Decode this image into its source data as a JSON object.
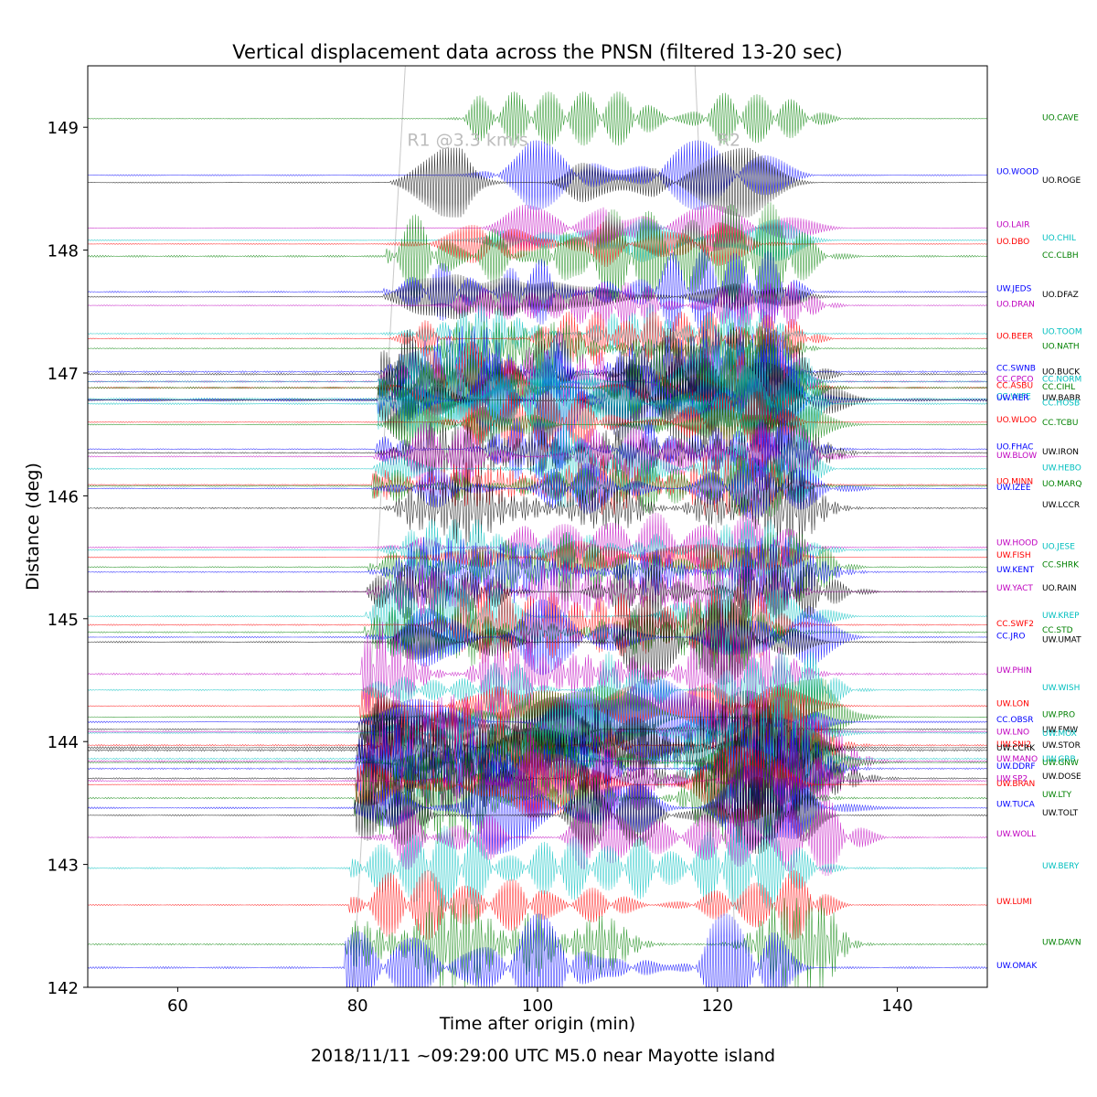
{
  "chart_data": {
    "type": "line",
    "title": "Vertical displacement data across the PNSN (filtered 13-20 sec)",
    "xlabel": "Time after origin (min)",
    "ylabel": "Distance (deg)",
    "footer": "2018/11/11 ~09:29:00 UTC  M5.0 near Mayotte island",
    "xlim": [
      50,
      150
    ],
    "ylim": [
      142,
      149.5
    ],
    "xticks": [
      60,
      80,
      100,
      120,
      140
    ],
    "yticks": [
      142,
      143,
      144,
      145,
      146,
      147,
      148,
      149
    ],
    "grid": false,
    "phase_lines": [
      {
        "label": "R1 @3.3 km/s",
        "x_at_top": 85.3,
        "x_at_bottom": 79.5,
        "label_x": 85.5,
        "label_y": 148.85
      },
      {
        "label": "R2",
        "x_at_top": 117.5,
        "x_at_bottom": 122.2,
        "label_x": 120.0,
        "label_y": 148.85
      }
    ],
    "colors": {
      "blue": "#0000ff",
      "green": "#008000",
      "red": "#ff0000",
      "cyan": "#00bfbf",
      "magenta": "#bf00bf",
      "black": "#000000",
      "phase": "#c8c8c8"
    },
    "series": [
      {
        "name": "UO.CAVE",
        "distance": 149.07,
        "color": "green",
        "column": "right",
        "amp": 0.35,
        "label_distance": 149.08
      },
      {
        "name": "UO.WOOD",
        "distance": 148.61,
        "color": "blue",
        "column": "left",
        "amp": 0.45,
        "label_distance": 148.64
      },
      {
        "name": "UO.ROGE",
        "distance": 148.55,
        "color": "black",
        "column": "right",
        "amp": 0.45,
        "label_distance": 148.57
      },
      {
        "name": "UO.LAIR",
        "distance": 148.18,
        "color": "magenta",
        "column": "left",
        "amp": 0.3,
        "label_distance": 148.21
      },
      {
        "name": "UO.CHIL",
        "distance": 148.08,
        "color": "cyan",
        "column": "right",
        "amp": 0.35,
        "label_distance": 148.1
      },
      {
        "name": "UO.DBO",
        "distance": 148.05,
        "color": "red",
        "column": "left",
        "amp": 0.35,
        "label_distance": 148.07
      },
      {
        "name": "CC.CLBH",
        "distance": 147.95,
        "color": "green",
        "column": "right",
        "amp": 0.7,
        "label_distance": 147.96
      },
      {
        "name": "UW.JEDS",
        "distance": 147.66,
        "color": "blue",
        "column": "left",
        "amp": 0.55,
        "label_distance": 147.69
      },
      {
        "name": "UO.DFAZ",
        "distance": 147.62,
        "color": "black",
        "column": "right",
        "amp": 0.4,
        "label_distance": 147.64
      },
      {
        "name": "UO.DRAN",
        "distance": 147.55,
        "color": "magenta",
        "column": "left",
        "amp": 0.3,
        "label_distance": 147.56
      },
      {
        "name": "UO.TOOM",
        "distance": 147.32,
        "color": "cyan",
        "column": "right",
        "amp": 0.4,
        "label_distance": 147.34
      },
      {
        "name": "UO.BEER",
        "distance": 147.28,
        "color": "red",
        "column": "left",
        "amp": 0.35,
        "label_distance": 147.3
      },
      {
        "name": "UO.NATH",
        "distance": 147.2,
        "color": "green",
        "column": "right",
        "amp": 0.35,
        "label_distance": 147.22
      },
      {
        "name": "CC.SWNB",
        "distance": 147.01,
        "color": "blue",
        "column": "left",
        "amp": 0.6,
        "label_distance": 147.04
      },
      {
        "name": "UO.BUCK",
        "distance": 146.99,
        "color": "black",
        "column": "right",
        "amp": 0.6,
        "label_distance": 147.01
      },
      {
        "name": "CC.CPCO",
        "distance": 146.93,
        "color": "magenta",
        "column": "left",
        "amp": 0.6,
        "label_distance": 146.95
      },
      {
        "name": "CC.NORM",
        "distance": 146.93,
        "color": "cyan",
        "column": "right",
        "amp": 0.5,
        "label_distance": 146.95
      },
      {
        "name": "CC.ASBU",
        "distance": 146.88,
        "color": "red",
        "column": "left",
        "amp": 0.6,
        "label_distance": 146.9
      },
      {
        "name": "CC.CIHL",
        "distance": 146.88,
        "color": "green",
        "column": "right",
        "amp": 0.6,
        "label_distance": 146.89
      },
      {
        "name": "CC.WIFE",
        "distance": 146.79,
        "color": "cyan",
        "column": "left",
        "amp": 0.6,
        "label_distance": 146.81
      },
      {
        "name": "UW.RER",
        "distance": 146.78,
        "color": "blue",
        "column": "left",
        "amp": 0.9,
        "label_distance": 146.8
      },
      {
        "name": "UW.BABR",
        "distance": 146.78,
        "color": "black",
        "column": "right",
        "amp": 0.7,
        "label_distance": 146.8
      },
      {
        "name": "CC.HOSB",
        "distance": 146.75,
        "color": "cyan",
        "column": "right",
        "amp": 0.6,
        "label_distance": 146.76
      },
      {
        "name": "UO.WLOO",
        "distance": 146.6,
        "color": "red",
        "column": "left",
        "amp": 0.4,
        "label_distance": 146.62
      },
      {
        "name": "CC.TCBU",
        "distance": 146.58,
        "color": "green",
        "column": "right",
        "amp": 0.4,
        "label_distance": 146.6
      },
      {
        "name": "UO.FHAC",
        "distance": 146.38,
        "color": "blue",
        "column": "left",
        "amp": 0.4,
        "label_distance": 146.4
      },
      {
        "name": "UW.IRON",
        "distance": 146.35,
        "color": "black",
        "column": "right",
        "amp": 0.4,
        "label_distance": 146.36
      },
      {
        "name": "UW.BLOW",
        "distance": 146.32,
        "color": "magenta",
        "column": "left",
        "amp": 0.45,
        "label_distance": 146.33
      },
      {
        "name": "UW.HEBO",
        "distance": 146.22,
        "color": "cyan",
        "column": "right",
        "amp": 0.5,
        "label_distance": 146.23
      },
      {
        "name": "UO.MINN",
        "distance": 146.09,
        "color": "red",
        "column": "left",
        "amp": 0.4,
        "label_distance": 146.12
      },
      {
        "name": "UO.MARQ",
        "distance": 146.08,
        "color": "green",
        "column": "right",
        "amp": 0.4,
        "label_distance": 146.1
      },
      {
        "name": "UW.IZEE",
        "distance": 146.06,
        "color": "blue",
        "column": "left",
        "amp": 0.4,
        "label_distance": 146.07
      },
      {
        "name": "UW.LCCR",
        "distance": 145.9,
        "color": "black",
        "column": "right",
        "amp": 0.5,
        "label_distance": 145.93
      },
      {
        "name": "UW.HOOD",
        "distance": 145.58,
        "color": "magenta",
        "column": "left",
        "amp": 0.45,
        "label_distance": 145.62
      },
      {
        "name": "UO.JESE",
        "distance": 145.56,
        "color": "cyan",
        "column": "right",
        "amp": 0.4,
        "label_distance": 145.59
      },
      {
        "name": "UW.FISH",
        "distance": 145.5,
        "color": "red",
        "column": "left",
        "amp": 0.35,
        "label_distance": 145.52
      },
      {
        "name": "CC.SHRK",
        "distance": 145.42,
        "color": "green",
        "column": "right",
        "amp": 0.45,
        "label_distance": 145.44
      },
      {
        "name": "UW.KENT",
        "distance": 145.38,
        "color": "blue",
        "column": "left",
        "amp": 0.45,
        "label_distance": 145.4
      },
      {
        "name": "UW.YACT",
        "distance": 145.22,
        "color": "magenta",
        "column": "left",
        "amp": 0.45,
        "label_distance": 145.25
      },
      {
        "name": "UO.RAIN",
        "distance": 145.22,
        "color": "black",
        "column": "right",
        "amp": 0.35,
        "label_distance": 145.25
      },
      {
        "name": "UW.KREP",
        "distance": 145.02,
        "color": "cyan",
        "column": "right",
        "amp": 0.5,
        "label_distance": 145.03
      },
      {
        "name": "CC.SWF2",
        "distance": 144.95,
        "color": "red",
        "column": "left",
        "amp": 0.5,
        "label_distance": 144.96
      },
      {
        "name": "CC.STD",
        "distance": 144.89,
        "color": "green",
        "column": "right",
        "amp": 0.5,
        "label_distance": 144.91
      },
      {
        "name": "CC.JRO",
        "distance": 144.85,
        "color": "blue",
        "column": "left",
        "amp": 0.5,
        "label_distance": 144.86
      },
      {
        "name": "UW.UMAT",
        "distance": 144.81,
        "color": "black",
        "column": "right",
        "amp": 0.55,
        "label_distance": 144.83
      },
      {
        "name": "UW.PHIN",
        "distance": 144.55,
        "color": "magenta",
        "column": "left",
        "amp": 0.7,
        "label_distance": 144.58
      },
      {
        "name": "UW.WISH",
        "distance": 144.42,
        "color": "cyan",
        "column": "right",
        "amp": 0.5,
        "label_distance": 144.44
      },
      {
        "name": "UW.LON",
        "distance": 144.29,
        "color": "red",
        "column": "left",
        "amp": 0.5,
        "label_distance": 144.31
      },
      {
        "name": "UW.PRO",
        "distance": 144.2,
        "color": "green",
        "column": "right",
        "amp": 0.5,
        "label_distance": 144.22
      },
      {
        "name": "CC.OBSR",
        "distance": 144.16,
        "color": "blue",
        "column": "left",
        "amp": 0.55,
        "label_distance": 144.18
      },
      {
        "name": "UW.FMW",
        "distance": 144.1,
        "color": "black",
        "column": "right",
        "amp": 0.5,
        "label_distance": 144.1
      },
      {
        "name": "UW.LNO",
        "distance": 144.08,
        "color": "magenta",
        "column": "left",
        "amp": 0.5,
        "label_distance": 144.08
      },
      {
        "name": "UW.MOX",
        "distance": 144.07,
        "color": "cyan",
        "column": "right",
        "amp": 0.5,
        "label_distance": 144.07
      },
      {
        "name": "UW.SNI2",
        "distance": 143.97,
        "color": "red",
        "column": "left",
        "amp": 0.6,
        "label_distance": 143.98
      },
      {
        "name": "UW.STOR",
        "distance": 143.95,
        "color": "black",
        "column": "right",
        "amp": 0.7,
        "label_distance": 143.97
      },
      {
        "name": "UW.CCRK",
        "distance": 143.93,
        "color": "black",
        "column": "left",
        "amp": 0.7,
        "label_distance": 143.95
      },
      {
        "name": "UW.MANO",
        "distance": 143.84,
        "color": "magenta",
        "column": "left",
        "amp": 0.6,
        "label_distance": 143.86
      },
      {
        "name": "UW.GRB",
        "distance": 143.86,
        "color": "cyan",
        "column": "right",
        "amp": 0.6,
        "label_distance": 143.86
      },
      {
        "name": "UW.GNW",
        "distance": 143.83,
        "color": "green",
        "column": "right",
        "amp": 0.6,
        "label_distance": 143.83
      },
      {
        "name": "UW.DDRF",
        "distance": 143.78,
        "color": "blue",
        "column": "left",
        "amp": 0.6,
        "label_distance": 143.8
      },
      {
        "name": "UW.DOSE",
        "distance": 143.7,
        "color": "black",
        "column": "right",
        "amp": 0.55,
        "label_distance": 143.72
      },
      {
        "name": "UW.SP2",
        "distance": 143.68,
        "color": "magenta",
        "column": "left",
        "amp": 0.55,
        "label_distance": 143.7
      },
      {
        "name": "UW.BRAN",
        "distance": 143.65,
        "color": "red",
        "column": "left",
        "amp": 0.5,
        "label_distance": 143.66
      },
      {
        "name": "UW.LTY",
        "distance": 143.54,
        "color": "green",
        "column": "right",
        "amp": 0.6,
        "label_distance": 143.57
      },
      {
        "name": "UW.TUCA",
        "distance": 143.46,
        "color": "blue",
        "column": "left",
        "amp": 0.6,
        "label_distance": 143.49
      },
      {
        "name": "UW.TOLT",
        "distance": 143.4,
        "color": "black",
        "column": "right",
        "amp": 0.5,
        "label_distance": 143.42
      },
      {
        "name": "UW.WOLL",
        "distance": 143.22,
        "color": "magenta",
        "column": "left",
        "amp": 0.5,
        "label_distance": 143.25
      },
      {
        "name": "UW.BERY",
        "distance": 142.97,
        "color": "cyan",
        "column": "right",
        "amp": 0.55,
        "label_distance": 142.99
      },
      {
        "name": "UW.LUMI",
        "distance": 142.67,
        "color": "red",
        "column": "left",
        "amp": 0.45,
        "label_distance": 142.7
      },
      {
        "name": "UW.DAVN",
        "distance": 142.35,
        "color": "green",
        "column": "right",
        "amp": 0.6,
        "label_distance": 142.37
      },
      {
        "name": "UW.OMAK",
        "distance": 142.16,
        "color": "blue",
        "column": "left",
        "amp": 0.7,
        "label_distance": 142.18
      }
    ]
  }
}
